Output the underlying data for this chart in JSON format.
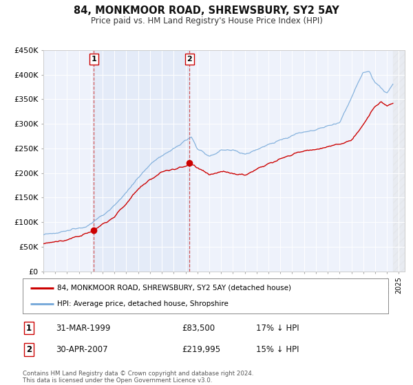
{
  "title": "84, MONKMOOR ROAD, SHREWSBURY, SY2 5AY",
  "subtitle": "Price paid vs. HM Land Registry's House Price Index (HPI)",
  "ylim": [
    0,
    450000
  ],
  "xlim_start": 1995.0,
  "xlim_end": 2025.5,
  "background_color": "#ffffff",
  "plot_bg_color": "#eef2fb",
  "grid_color": "#ffffff",
  "legend_label_red": "84, MONKMOOR ROAD, SHREWSBURY, SY2 5AY (detached house)",
  "legend_label_blue": "HPI: Average price, detached house, Shropshire",
  "red_color": "#cc0000",
  "blue_color": "#7aabda",
  "sale1_date": 1999.25,
  "sale1_price": 83500,
  "sale1_text": "31-MAR-1999",
  "sale1_price_text": "£83,500",
  "sale1_hpi_text": "17% ↓ HPI",
  "sale2_date": 2007.33,
  "sale2_price": 219995,
  "sale2_text": "30-APR-2007",
  "sale2_price_text": "£219,995",
  "sale2_hpi_text": "15% ↓ HPI",
  "footer_text": "Contains HM Land Registry data © Crown copyright and database right 2024.\nThis data is licensed under the Open Government Licence v3.0.",
  "yticks": [
    0,
    50000,
    100000,
    150000,
    200000,
    250000,
    300000,
    350000,
    400000,
    450000
  ],
  "ytick_labels": [
    "£0",
    "£50K",
    "£100K",
    "£150K",
    "£200K",
    "£250K",
    "£300K",
    "£350K",
    "£400K",
    "£450K"
  ],
  "data_end_year": 2024.5,
  "hpi_seed": 123,
  "red_seed": 456
}
